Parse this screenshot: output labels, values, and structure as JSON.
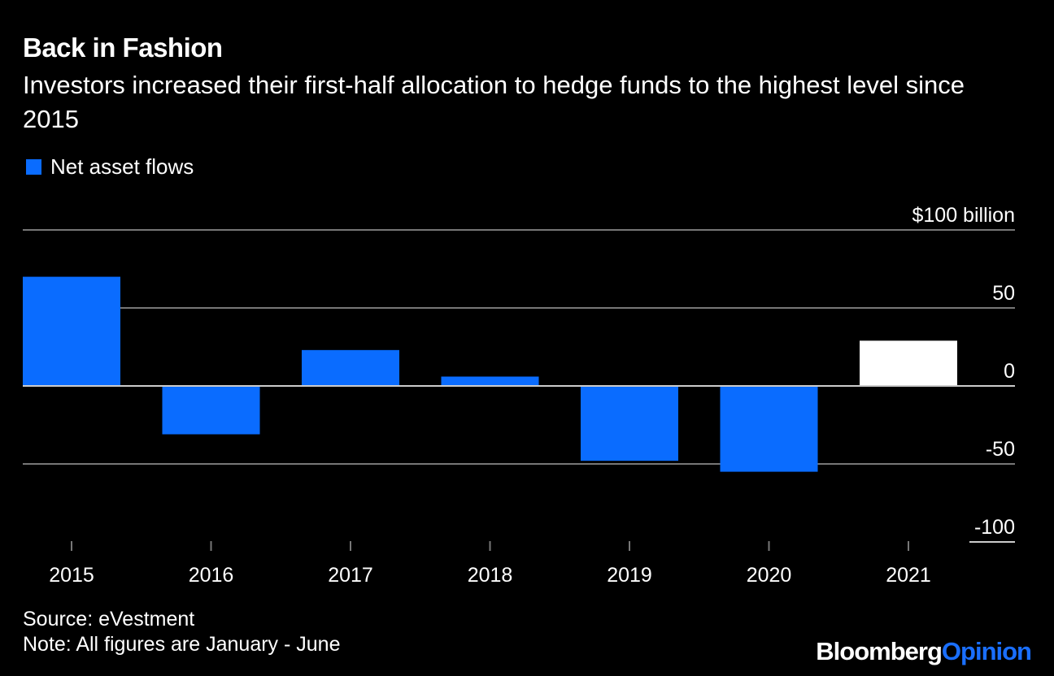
{
  "title": "Back in Fashion",
  "subtitle": "Investors increased their first-half allocation to hedge funds to the highest level since 2015",
  "legend": {
    "label": "Net asset flows"
  },
  "colors": {
    "background": "#000000",
    "bar": "#0a6cff",
    "highlight": "#ffffff",
    "grid": "#777777",
    "zero": "#cccccc"
  },
  "chart_data": {
    "type": "bar",
    "categories": [
      "2015",
      "2016",
      "2017",
      "2018",
      "2019",
      "2020",
      "2021"
    ],
    "series": [
      {
        "name": "Net asset flows",
        "values": [
          70,
          -31,
          23,
          6,
          -48,
          -55,
          29
        ]
      }
    ],
    "highlight_category": "2021",
    "ylim": [
      -100,
      100
    ],
    "yticks": [
      100,
      50,
      0,
      -50,
      -100
    ],
    "ytick_labels": [
      "$100 billion",
      "50",
      "0",
      "-50",
      "-100"
    ],
    "xlabel": "",
    "ylabel": "",
    "title": "Back in Fashion"
  },
  "footer": {
    "source": "Source: eVestment",
    "note": "Note: All figures are January - June"
  },
  "brand": {
    "name": "Bloomberg",
    "suffix": "Opinion"
  }
}
